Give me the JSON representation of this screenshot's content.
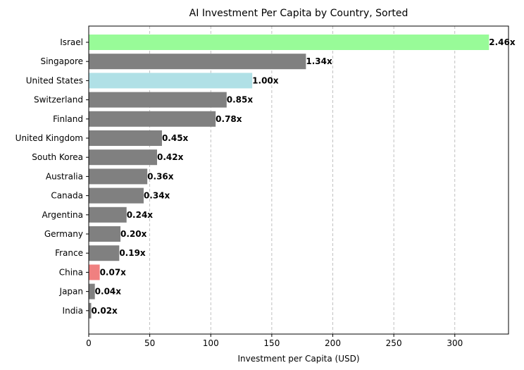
{
  "chart_data": {
    "type": "bar",
    "orientation": "horizontal",
    "title": "AI Investment Per Capita by Country, Sorted",
    "xlabel": "Investment per Capita (USD)",
    "ylabel": "",
    "xlim": [
      0,
      344
    ],
    "xticks": [
      0,
      50,
      100,
      150,
      200,
      250,
      300
    ],
    "grid": "x-dashed",
    "categories": [
      "Israel",
      "Singapore",
      "United States",
      "Switzerland",
      "Finland",
      "United Kingdom",
      "South Korea",
      "Australia",
      "Canada",
      "Argentina",
      "Germany",
      "France",
      "China",
      "Japan",
      "India"
    ],
    "values": [
      328,
      178,
      134,
      113,
      104,
      60,
      56,
      48,
      45,
      31,
      26,
      25,
      9,
      5,
      2
    ],
    "data_labels": [
      "2.46x",
      "1.34x",
      "1.00x",
      "0.85x",
      "0.78x",
      "0.45x",
      "0.42x",
      "0.36x",
      "0.34x",
      "0.24x",
      "0.20x",
      "0.19x",
      "0.07x",
      "0.04x",
      "0.02x"
    ],
    "colors": [
      "#98fb98",
      "#808080",
      "#b0e0e6",
      "#808080",
      "#808080",
      "#808080",
      "#808080",
      "#808080",
      "#808080",
      "#808080",
      "#808080",
      "#808080",
      "#f08080",
      "#808080",
      "#808080"
    ]
  }
}
